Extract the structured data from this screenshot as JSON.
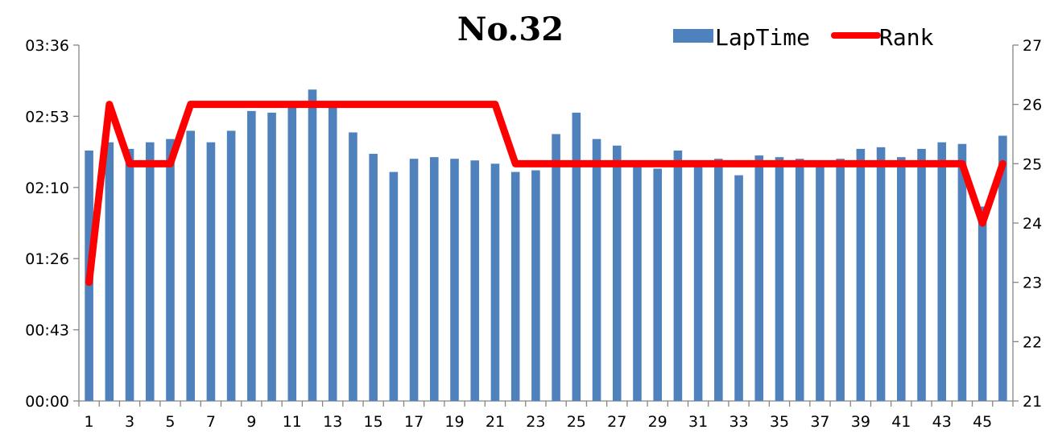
{
  "chart_data": {
    "type": "bar",
    "title": "No.32",
    "xlabel": "",
    "ylabel": "",
    "x": [
      1,
      2,
      3,
      4,
      5,
      6,
      7,
      8,
      9,
      10,
      11,
      12,
      13,
      14,
      15,
      16,
      17,
      18,
      19,
      20,
      21,
      22,
      23,
      24,
      25,
      26,
      27,
      28,
      29,
      30,
      31,
      32,
      33,
      34,
      35,
      36,
      37,
      38,
      39,
      40,
      41,
      42,
      43,
      44,
      45,
      46
    ],
    "x_tick_labels": [
      "1",
      "3",
      "5",
      "7",
      "9",
      "11",
      "13",
      "15",
      "17",
      "19",
      "21",
      "23",
      "25",
      "27",
      "29",
      "31",
      "33",
      "35",
      "37",
      "39",
      "41",
      "43",
      "45"
    ],
    "y_left_ticks": [
      "00:00",
      "00:43",
      "01:26",
      "02:10",
      "02:53",
      "03:36"
    ],
    "y_left_range_seconds": [
      0,
      216
    ],
    "y_right_ticks": [
      "21",
      "22",
      "23",
      "24",
      "25",
      "26",
      "27"
    ],
    "y_right_range": [
      21,
      27
    ],
    "series": [
      {
        "name": "LapTime",
        "kind": "bar",
        "axis": "left",
        "color": "#4f81bd",
        "unit": "seconds",
        "values": [
          152,
          157,
          153,
          157,
          159,
          164,
          157,
          164,
          176,
          175,
          178,
          189,
          178,
          163,
          150,
          139,
          147,
          148,
          147,
          146,
          144,
          139,
          140,
          162,
          175,
          159,
          155,
          145,
          141,
          152,
          144,
          147,
          137,
          149,
          148,
          147,
          146,
          147,
          153,
          154,
          148,
          153,
          157,
          156,
          118,
          161
        ]
      },
      {
        "name": "Rank",
        "kind": "line",
        "axis": "right",
        "color": "#ff0000",
        "values": [
          23,
          26,
          25,
          25,
          25,
          26,
          26,
          26,
          26,
          26,
          26,
          26,
          26,
          26,
          26,
          26,
          26,
          26,
          26,
          26,
          26,
          25,
          25,
          25,
          25,
          25,
          25,
          25,
          25,
          25,
          25,
          25,
          25,
          25,
          25,
          25,
          25,
          25,
          25,
          25,
          25,
          25,
          25,
          25,
          24,
          25
        ]
      }
    ],
    "legend_position": "top-right",
    "grid": false
  }
}
